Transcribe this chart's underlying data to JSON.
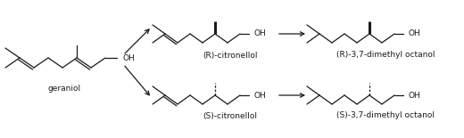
{
  "bg_color": "#ffffff",
  "line_color": "#1a1a1a",
  "text_color": "#1a1a1a",
  "font_size": 6.5,
  "fig_width": 5.2,
  "fig_height": 1.55,
  "dpi": 100,
  "labels": {
    "geraniol": "geraniol",
    "R_citronellol": "(R)-citronellol",
    "S_citronellol": "(S)-citronellol",
    "R_product": "(R)-3,7-dimethyl octanol",
    "S_product": "(S)-3,7-dimethyl octanol"
  }
}
